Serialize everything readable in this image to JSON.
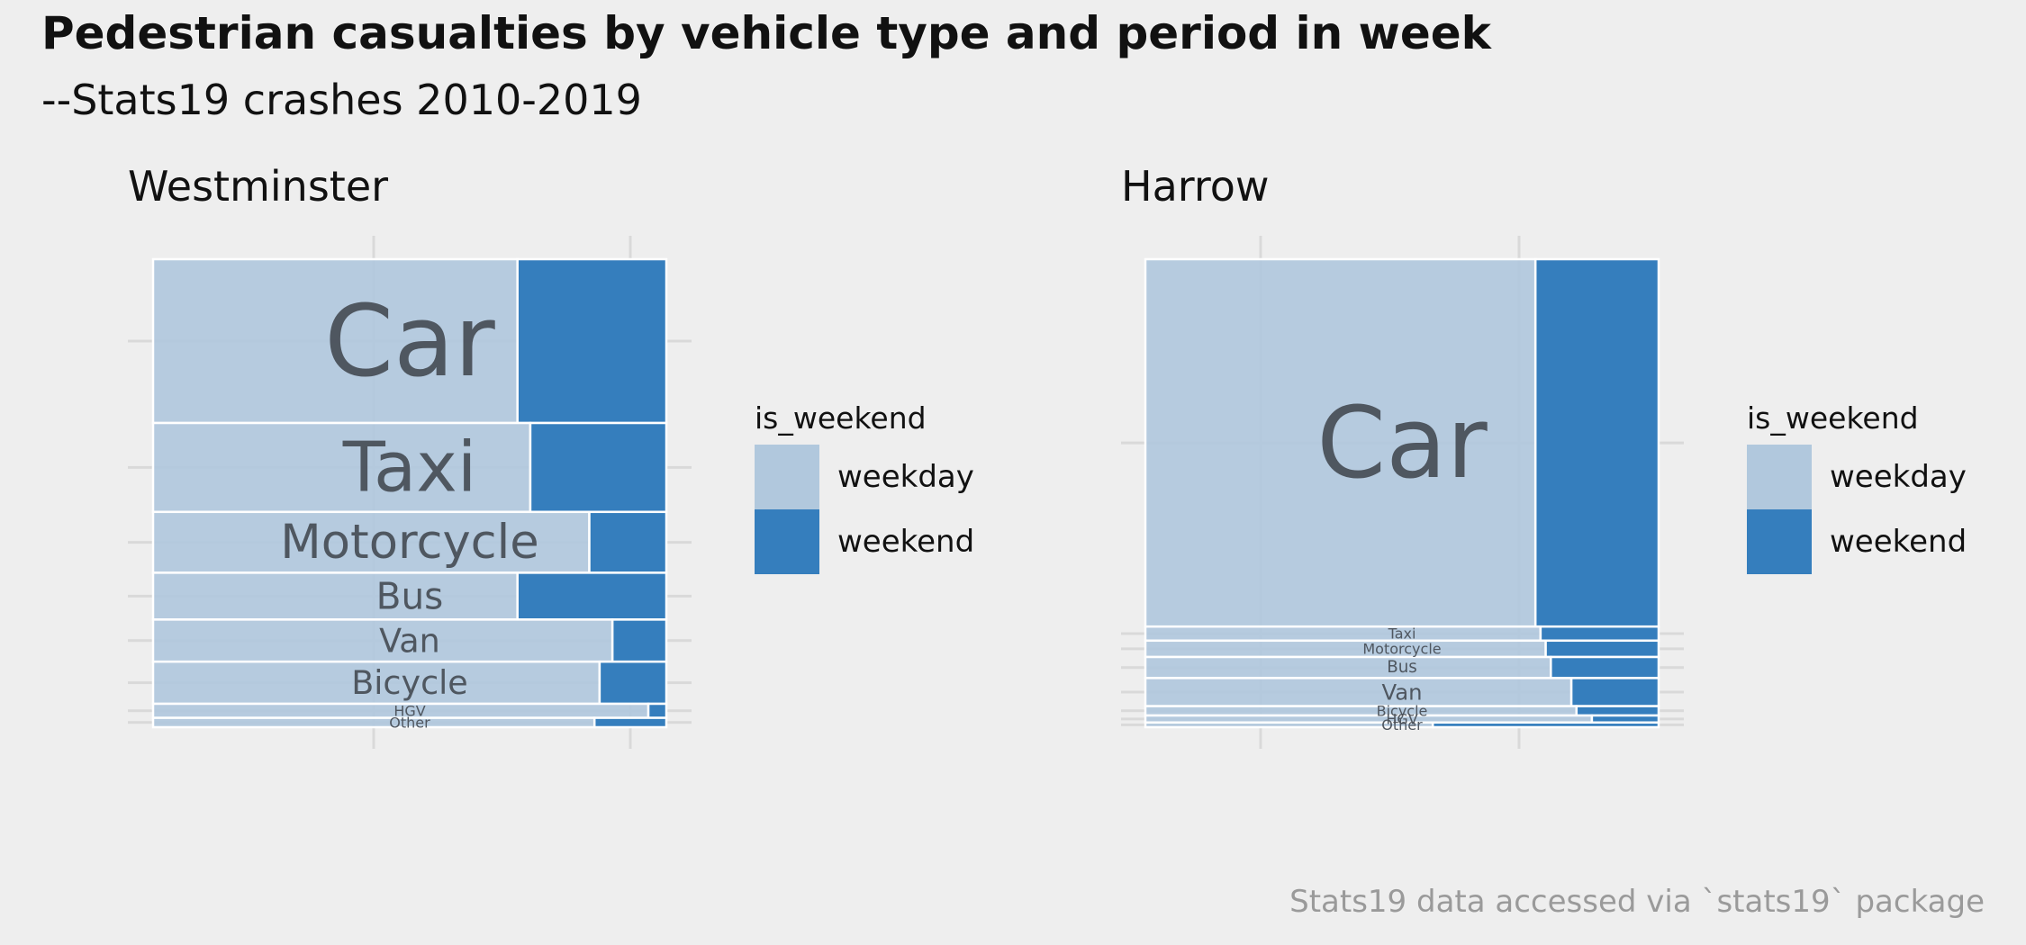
{
  "title": "Pedestrian casualties by vehicle type and period in week",
  "subtitle": "--Stats19 crashes 2010-2019",
  "caption": "Stats19 data accessed via `stats19` package",
  "colors": {
    "weekday": "#b1c8dd",
    "weekend": "#357ebd",
    "grid": "#d9d9d9",
    "label": "#4a5058",
    "stroke": "#ffffff"
  },
  "legend": {
    "title": "is_weekend",
    "items": [
      "weekday",
      "weekend"
    ]
  },
  "chart_data": [
    {
      "type": "mosaic",
      "panel": "Westminster",
      "categories": [
        "Car",
        "Taxi",
        "Motorcycle",
        "Bus",
        "Van",
        "Bicycle",
        "HGV",
        "Other"
      ],
      "series": [
        {
          "name": "weekday",
          "values": [
            0.71,
            0.735,
            0.85,
            0.71,
            0.895,
            0.87,
            0.965,
            0.86
          ]
        },
        {
          "name": "weekend",
          "values": [
            0.29,
            0.265,
            0.15,
            0.29,
            0.105,
            0.13,
            0.035,
            0.14
          ]
        }
      ],
      "shares": [
        0.35,
        0.19,
        0.13,
        0.1,
        0.09,
        0.09,
        0.03,
        0.02
      ]
    },
    {
      "type": "mosaic",
      "panel": "Harrow",
      "categories": [
        "Car",
        "Taxi",
        "Motorcycle",
        "Bus",
        "Van",
        "Bicycle",
        "HGV",
        "Other"
      ],
      "series": [
        {
          "name": "weekday",
          "values": [
            0.76,
            0.77,
            0.78,
            0.79,
            0.83,
            0.84,
            0.87,
            0.56
          ]
        },
        {
          "name": "weekend",
          "values": [
            0.24,
            0.23,
            0.22,
            0.21,
            0.17,
            0.16,
            0.13,
            0.44
          ]
        }
      ],
      "shares": [
        0.785,
        0.03,
        0.035,
        0.045,
        0.06,
        0.02,
        0.015,
        0.01
      ]
    }
  ]
}
